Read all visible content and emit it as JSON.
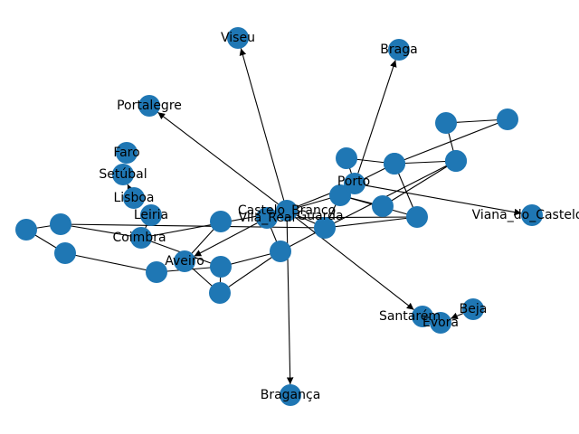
{
  "graph": {
    "colors": {
      "node": "#1f77b4",
      "edge": "#000000",
      "label": "#000000",
      "background": "#ffffff"
    },
    "nodes": [
      {
        "id": "Viseu",
        "label": "Viseu"
      },
      {
        "id": "Braga",
        "label": "Braga"
      },
      {
        "id": "Portalegre",
        "label": "Portalegre"
      },
      {
        "id": "Faro",
        "label": "Faro"
      },
      {
        "id": "Setubal",
        "label": "Setúbal"
      },
      {
        "id": "Lisboa",
        "label": "Lisboa"
      },
      {
        "id": "Leiria",
        "label": "Leiria"
      },
      {
        "id": "Coimbra",
        "label": "Coimbra"
      },
      {
        "id": "Aveiro",
        "label": "Aveiro"
      },
      {
        "id": "Porto",
        "label": "Porto"
      },
      {
        "id": "Castelo_Branco",
        "label": "Castelo_Branco"
      },
      {
        "id": "Vila_Real",
        "label": "Vila_Real"
      },
      {
        "id": "Guarda",
        "label": "Guarda"
      },
      {
        "id": "Viana_do_Castelo",
        "label": "Viana_do_Castelo"
      },
      {
        "id": "Santarem",
        "label": "Santarém"
      },
      {
        "id": "Evora",
        "label": "Évora"
      },
      {
        "id": "Beja",
        "label": "Beja"
      },
      {
        "id": "Braganca",
        "label": "Bragança"
      },
      {
        "id": "u1",
        "label": ""
      },
      {
        "id": "u2",
        "label": ""
      },
      {
        "id": "u3",
        "label": ""
      },
      {
        "id": "u4",
        "label": ""
      },
      {
        "id": "u5",
        "label": ""
      },
      {
        "id": "u6",
        "label": ""
      },
      {
        "id": "u7",
        "label": ""
      },
      {
        "id": "u8",
        "label": ""
      },
      {
        "id": "u9",
        "label": ""
      },
      {
        "id": "u10",
        "label": ""
      },
      {
        "id": "u11",
        "label": ""
      },
      {
        "id": "u12",
        "label": ""
      },
      {
        "id": "u13",
        "label": ""
      },
      {
        "id": "u14",
        "label": ""
      },
      {
        "id": "u15",
        "label": ""
      },
      {
        "id": "u16",
        "label": ""
      },
      {
        "id": "u17",
        "label": ""
      },
      {
        "id": "u18",
        "label": ""
      }
    ],
    "edges": [
      {
        "from": "Castelo_Branco",
        "to": "Viseu",
        "directed": true
      },
      {
        "from": "Castelo_Branco",
        "to": "Braganca",
        "directed": true
      },
      {
        "from": "Castelo_Branco",
        "to": "Portalegre",
        "directed": true
      },
      {
        "from": "Castelo_Branco",
        "to": "Santarem",
        "directed": true
      },
      {
        "from": "u2",
        "to": "Braga",
        "directed": true
      },
      {
        "from": "u2",
        "to": "Viana_do_Castelo",
        "directed": true
      },
      {
        "from": "Lisboa",
        "to": "Setubal",
        "directed": true
      },
      {
        "from": "Vila_Real",
        "to": "Aveiro",
        "directed": true
      },
      {
        "from": "Beja",
        "to": "Evora",
        "directed": true
      },
      {
        "from": "u9",
        "to": "u10",
        "directed": false
      },
      {
        "from": "u9",
        "to": "u11",
        "directed": false
      },
      {
        "from": "u10",
        "to": "u12",
        "directed": false
      },
      {
        "from": "u11",
        "to": "u12",
        "directed": false
      },
      {
        "from": "u11",
        "to": "u6",
        "directed": false
      },
      {
        "from": "u12",
        "to": "u8",
        "directed": false
      },
      {
        "from": "u6",
        "to": "u1",
        "directed": false
      },
      {
        "from": "u1",
        "to": "u2",
        "directed": false
      },
      {
        "from": "u6",
        "to": "u2",
        "directed": false
      },
      {
        "from": "u6",
        "to": "u7",
        "directed": false
      },
      {
        "from": "u2",
        "to": "Porto",
        "directed": false
      },
      {
        "from": "u2",
        "to": "Castelo_Branco",
        "directed": false
      },
      {
        "from": "Porto",
        "to": "Castelo_Branco",
        "directed": false
      },
      {
        "from": "Porto",
        "to": "Guarda",
        "directed": false
      },
      {
        "from": "Porto",
        "to": "u7",
        "directed": false
      },
      {
        "from": "Porto",
        "to": "u3",
        "directed": false
      },
      {
        "from": "u7",
        "to": "Vila_Real",
        "directed": false
      },
      {
        "from": "u7",
        "to": "Guarda",
        "directed": false
      },
      {
        "from": "u8",
        "to": "Guarda",
        "directed": false
      },
      {
        "from": "u8",
        "to": "u3",
        "directed": false
      },
      {
        "from": "Guarda",
        "to": "Castelo_Branco",
        "directed": false
      },
      {
        "from": "Guarda",
        "to": "u5",
        "directed": false
      },
      {
        "from": "Guarda",
        "to": "u13",
        "directed": false
      },
      {
        "from": "Vila_Real",
        "to": "u5",
        "directed": false
      },
      {
        "from": "Castelo_Branco",
        "to": "Coimbra",
        "directed": false
      },
      {
        "from": "u4",
        "to": "Aveiro",
        "directed": false
      },
      {
        "from": "u5",
        "to": "u17",
        "directed": false
      },
      {
        "from": "u5",
        "to": "u18",
        "directed": false
      },
      {
        "from": "u13",
        "to": "u14",
        "directed": false
      },
      {
        "from": "u14",
        "to": "u15",
        "directed": false
      },
      {
        "from": "u15",
        "to": "u16",
        "directed": false
      },
      {
        "from": "u13",
        "to": "Coimbra",
        "directed": false
      },
      {
        "from": "u16",
        "to": "u17",
        "directed": false
      },
      {
        "from": "u17",
        "to": "u18",
        "directed": false
      },
      {
        "from": "Coimbra",
        "to": "u17",
        "directed": false
      },
      {
        "from": "Aveiro",
        "to": "u18",
        "directed": false
      },
      {
        "from": "Leiria",
        "to": "Coimbra",
        "directed": false
      }
    ]
  }
}
